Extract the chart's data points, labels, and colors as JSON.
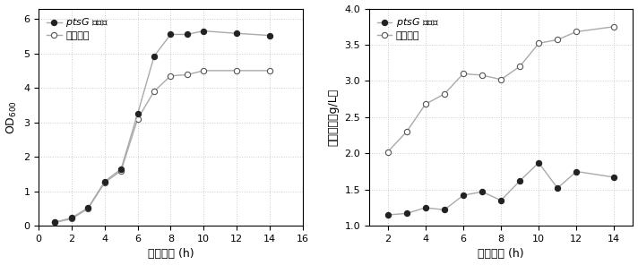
{
  "left": {
    "knocked_x": [
      1,
      2,
      3,
      4,
      5,
      6,
      7,
      8,
      9,
      10,
      12,
      14
    ],
    "knocked_y": [
      0.1,
      0.23,
      0.52,
      1.28,
      1.65,
      3.25,
      4.92,
      5.55,
      5.55,
      5.65,
      5.58,
      5.52
    ],
    "wild_x": [
      1,
      2,
      3,
      4,
      5,
      6,
      7,
      8,
      9,
      10,
      12,
      14
    ],
    "wild_y": [
      0.1,
      0.2,
      0.5,
      1.25,
      1.6,
      3.1,
      3.9,
      4.35,
      4.38,
      4.5,
      4.5,
      4.5
    ],
    "xlabel": "培养时间 (h)",
    "xlim": [
      0,
      16
    ],
    "ylim": [
      0,
      6.3
    ],
    "xticks": [
      0,
      2,
      4,
      6,
      8,
      10,
      12,
      14,
      16
    ],
    "yticks": [
      0,
      1,
      2,
      3,
      4,
      5,
      6
    ],
    "legend_knocked_rest": " 敲除菌",
    "legend_wild": "未敲除菌"
  },
  "right": {
    "knocked_x": [
      2,
      3,
      4,
      5,
      6,
      7,
      8,
      9,
      10,
      11,
      12,
      14
    ],
    "knocked_y": [
      1.15,
      1.17,
      1.25,
      1.22,
      1.42,
      1.47,
      1.35,
      1.62,
      1.87,
      1.52,
      1.75,
      1.67
    ],
    "wild_x": [
      2,
      3,
      4,
      5,
      6,
      7,
      8,
      9,
      10,
      11,
      12,
      14
    ],
    "wild_y": [
      2.02,
      2.3,
      2.68,
      2.82,
      3.1,
      3.08,
      3.02,
      3.2,
      3.52,
      3.57,
      3.68,
      3.75
    ],
    "xlabel": "培养时间 (h)",
    "xlim": [
      1,
      15
    ],
    "ylim": [
      1.0,
      4.0
    ],
    "xticks": [
      2,
      4,
      6,
      8,
      10,
      12,
      14
    ],
    "yticks": [
      1.0,
      1.5,
      2.0,
      2.5,
      3.0,
      3.5,
      4.0
    ],
    "legend_knocked_rest": " 敲除菌",
    "legend_wild": "未敲除菌"
  },
  "line_color": "#aaaaaa",
  "knocked_markerfacecolor": "#222222",
  "knocked_markeredgecolor": "#222222",
  "wild_markerfacecolor": "#ffffff",
  "wild_markeredgecolor": "#555555",
  "markersize": 4.5,
  "linewidth": 1.0,
  "bg_color": "#ffffff",
  "grid_color": "#cccccc",
  "spine_color": "#000000",
  "tick_color": "#000000",
  "label_fontsize": 9,
  "tick_fontsize": 8,
  "legend_fontsize": 8
}
